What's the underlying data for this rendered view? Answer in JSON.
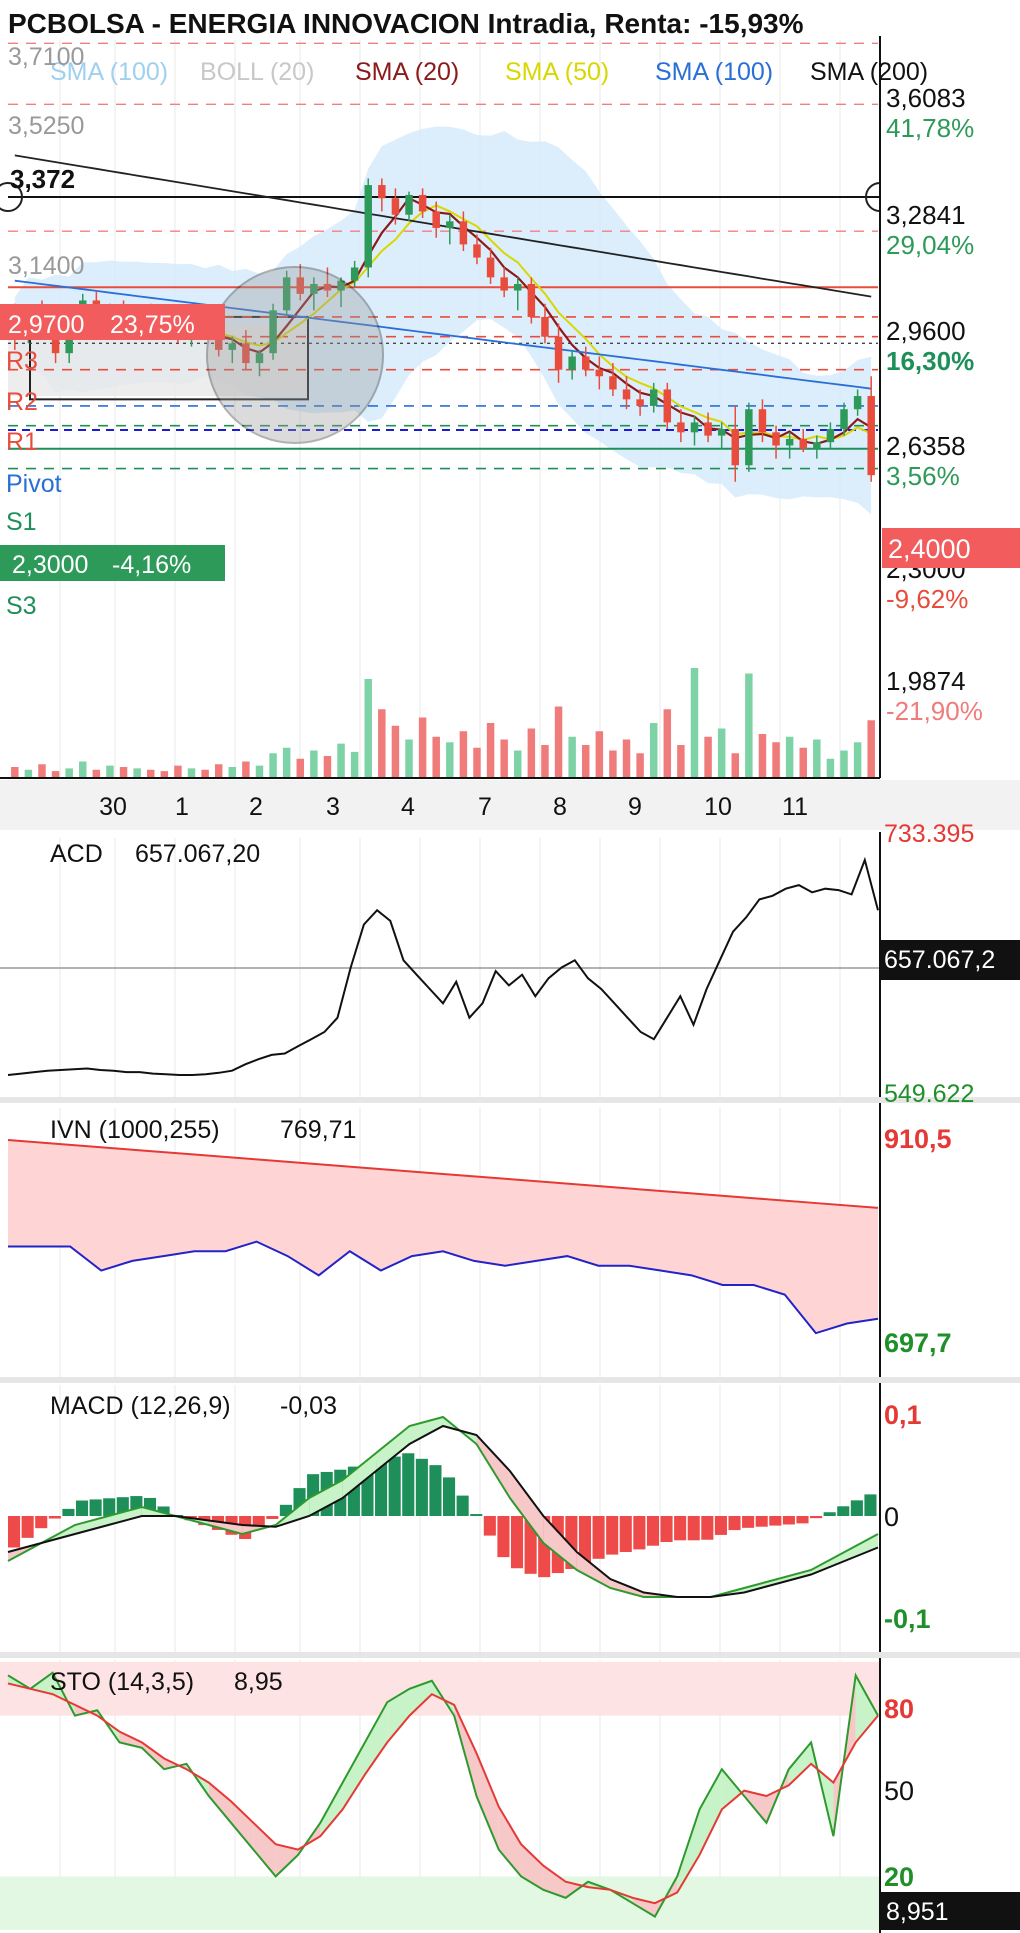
{
  "chart_data": {
    "type": "candlestick",
    "title": "PCBOLSA - ENERGIA INNOVACION Intradia, Renta: -15,93%",
    "legend": [
      {
        "label": "SMA (100)",
        "color": "#9fd0f0"
      },
      {
        "label": "BOLL (20)",
        "color": "#c8c8c8"
      },
      {
        "label": "SMA (20)",
        "color": "#8b1a1a"
      },
      {
        "label": "SMA (50)",
        "color": "#d8d800"
      },
      {
        "label": "SMA (100)",
        "color": "#2a6fd6"
      },
      {
        "label": "SMA (200)",
        "color": "#111111"
      }
    ],
    "price_axis": {
      "ylim": [
        1.9,
        3.72
      ],
      "right_labels": [
        {
          "price": "3,6083",
          "pct": "41,78%",
          "pct_color": "#2e9a5a"
        },
        {
          "price": "3,2841",
          "pct": "29,04%",
          "pct_color": "#2e9a5a"
        },
        {
          "price": "2,9600",
          "pct": "16,30%",
          "pct_color": "#1f8f5a"
        },
        {
          "price": "2,6358",
          "pct": "3,56%",
          "pct_color": "#2e9a5a"
        },
        {
          "price": "2,3000",
          "pct": "-9,62%",
          "pct_color": "#e74c3c"
        },
        {
          "price": "1,9874",
          "pct": "-21,90%",
          "pct_color": "#f07b7b"
        }
      ],
      "current_price": "2,4000",
      "left_levels": [
        "3,7100",
        "3,5250",
        "3,1400"
      ],
      "crosshair_value": "3,372",
      "box_high": {
        "label": "2,9700",
        "pct": "23,75%"
      },
      "box_low": {
        "label": "2,3000",
        "pct": "-4,16%"
      }
    },
    "pivots": [
      {
        "label": "R3",
        "value": 2.88
      },
      {
        "label": "R2",
        "value": 2.82
      },
      {
        "label": "R1",
        "value": 2.72
      },
      {
        "label": "Pivot",
        "value": 2.61
      },
      {
        "label": "S1",
        "value": 2.55
      },
      {
        "label": "S3",
        "value": 2.42
      }
    ],
    "x_ticks": [
      "30",
      "1",
      "2",
      "3",
      "4",
      "7",
      "8",
      "9",
      "10",
      "11"
    ],
    "candles": [
      [
        2.86,
        2.92,
        2.78,
        2.84
      ],
      [
        2.84,
        2.9,
        2.8,
        2.88
      ],
      [
        2.88,
        2.93,
        2.82,
        2.83
      ],
      [
        2.83,
        2.86,
        2.74,
        2.77
      ],
      [
        2.77,
        2.85,
        2.74,
        2.84
      ],
      [
        2.84,
        2.95,
        2.82,
        2.93
      ],
      [
        2.93,
        2.96,
        2.86,
        2.88
      ],
      [
        2.88,
        2.92,
        2.84,
        2.9
      ],
      [
        2.9,
        2.93,
        2.86,
        2.87
      ],
      [
        2.87,
        2.9,
        2.83,
        2.89
      ],
      [
        2.89,
        2.92,
        2.85,
        2.86
      ],
      [
        2.86,
        2.88,
        2.82,
        2.84
      ],
      [
        2.84,
        2.87,
        2.8,
        2.83
      ],
      [
        2.83,
        2.86,
        2.79,
        2.85
      ],
      [
        2.85,
        2.88,
        2.81,
        2.82
      ],
      [
        2.82,
        2.85,
        2.76,
        2.78
      ],
      [
        2.78,
        2.82,
        2.74,
        2.8
      ],
      [
        2.8,
        2.84,
        2.72,
        2.74
      ],
      [
        2.74,
        2.78,
        2.7,
        2.77
      ],
      [
        2.77,
        2.92,
        2.75,
        2.9
      ],
      [
        2.9,
        3.02,
        2.88,
        3.0
      ],
      [
        3.0,
        3.04,
        2.93,
        2.95
      ],
      [
        2.95,
        3.0,
        2.9,
        2.98
      ],
      [
        2.98,
        3.03,
        2.94,
        2.96
      ],
      [
        2.96,
        3.0,
        2.91,
        2.99
      ],
      [
        2.99,
        3.05,
        2.97,
        3.03
      ],
      [
        3.03,
        3.3,
        3.0,
        3.28
      ],
      [
        3.28,
        3.3,
        3.2,
        3.24
      ],
      [
        3.24,
        3.27,
        3.16,
        3.19
      ],
      [
        3.19,
        3.26,
        3.17,
        3.25
      ],
      [
        3.25,
        3.27,
        3.18,
        3.2
      ],
      [
        3.2,
        3.23,
        3.12,
        3.15
      ],
      [
        3.15,
        3.19,
        3.1,
        3.17
      ],
      [
        3.17,
        3.2,
        3.08,
        3.1
      ],
      [
        3.1,
        3.13,
        3.04,
        3.06
      ],
      [
        3.06,
        3.09,
        2.98,
        3.0
      ],
      [
        3.0,
        3.03,
        2.94,
        2.96
      ],
      [
        2.96,
        3.0,
        2.9,
        2.98
      ],
      [
        2.98,
        3.0,
        2.86,
        2.88
      ],
      [
        2.88,
        2.92,
        2.8,
        2.82
      ],
      [
        2.82,
        2.86,
        2.68,
        2.72
      ],
      [
        2.72,
        2.78,
        2.69,
        2.76
      ],
      [
        2.76,
        2.79,
        2.7,
        2.72
      ],
      [
        2.72,
        2.76,
        2.66,
        2.7
      ],
      [
        2.7,
        2.74,
        2.64,
        2.66
      ],
      [
        2.66,
        2.7,
        2.6,
        2.63
      ],
      [
        2.63,
        2.66,
        2.58,
        2.61
      ],
      [
        2.61,
        2.68,
        2.59,
        2.66
      ],
      [
        2.66,
        2.68,
        2.54,
        2.56
      ],
      [
        2.56,
        2.6,
        2.5,
        2.53
      ],
      [
        2.53,
        2.58,
        2.49,
        2.56
      ],
      [
        2.56,
        2.59,
        2.5,
        2.52
      ],
      [
        2.52,
        2.56,
        2.48,
        2.54
      ],
      [
        2.54,
        2.61,
        2.38,
        2.43
      ],
      [
        2.43,
        2.62,
        2.41,
        2.6
      ],
      [
        2.6,
        2.63,
        2.5,
        2.53
      ],
      [
        2.53,
        2.55,
        2.45,
        2.49
      ],
      [
        2.49,
        2.53,
        2.45,
        2.51
      ],
      [
        2.51,
        2.54,
        2.47,
        2.48
      ],
      [
        2.48,
        2.52,
        2.45,
        2.5
      ],
      [
        2.5,
        2.56,
        2.48,
        2.54
      ],
      [
        2.54,
        2.62,
        2.52,
        2.6
      ],
      [
        2.6,
        2.66,
        2.58,
        2.64
      ],
      [
        2.64,
        2.7,
        2.38,
        2.4
      ]
    ],
    "volume": [
      8,
      6,
      10,
      5,
      7,
      12,
      6,
      9,
      8,
      7,
      6,
      5,
      9,
      7,
      6,
      10,
      8,
      12,
      9,
      18,
      22,
      14,
      20,
      16,
      25,
      19,
      72,
      50,
      38,
      28,
      44,
      30,
      26,
      34,
      22,
      40,
      28,
      20,
      36,
      24,
      52,
      30,
      24,
      34,
      20,
      28,
      18,
      40,
      50,
      24,
      80,
      30,
      36,
      18,
      76,
      32,
      26,
      30,
      22,
      28,
      14,
      20,
      26,
      42
    ],
    "volume_colors_up": "#7ed3a6",
    "volume_colors_down": "#f07b7b",
    "indicators": [
      {
        "name": "ACD",
        "value": "657.067,20",
        "axis_top": "733.395",
        "axis_bottom": "549.622",
        "current": "657.067,2"
      },
      {
        "name": "IVN (1000,255)",
        "value": "769,71",
        "axis_top": "910,5",
        "axis_bottom": "697,7"
      },
      {
        "name": "MACD (12,26,9)",
        "value": "-0,03",
        "axis_top": "0,1",
        "axis_mid": "0",
        "axis_bottom": "-0,1"
      },
      {
        "name": "STO (14,3,5)",
        "value": "8,95",
        "axis_top": "80",
        "axis_mid": "50",
        "axis_bottom": "20",
        "current": "8,951"
      }
    ],
    "acd_series": [
      40,
      42,
      44,
      46,
      47,
      48,
      49,
      47,
      46,
      44,
      44,
      42,
      41,
      40,
      40,
      41,
      43,
      46,
      55,
      62,
      68,
      70,
      80,
      90,
      100,
      120,
      190,
      250,
      270,
      255,
      200,
      180,
      160,
      140,
      170,
      120,
      140,
      185,
      165,
      180,
      150,
      175,
      190,
      200,
      175,
      160,
      140,
      120,
      100,
      90,
      120,
      150,
      110,
      160,
      200,
      240,
      260,
      285,
      290,
      300,
      305,
      295,
      300,
      298,
      292,
      340,
      270
    ],
    "ivn_price": [
      880,
      870,
      860,
      850,
      840,
      830,
      820,
      810,
      800,
      790,
      780,
      770,
      760,
      750,
      740
    ],
    "ivn_series": [
      800,
      800,
      800,
      775,
      785,
      790,
      795,
      795,
      805,
      790,
      770,
      795,
      775,
      790,
      795,
      785,
      780,
      785,
      790,
      780,
      780,
      775,
      770,
      760,
      760,
      750,
      710,
      720,
      725
    ],
    "macd_line": [
      -0.05,
      -0.03,
      -0.01,
      0.0,
      0.01,
      0.0,
      -0.01,
      -0.02,
      -0.01,
      0.02,
      0.04,
      0.07,
      0.1,
      0.11,
      0.08,
      0.02,
      -0.03,
      -0.06,
      -0.08,
      -0.09,
      -0.09,
      -0.09,
      -0.08,
      -0.07,
      -0.06,
      -0.04,
      -0.02
    ],
    "macd_signal": [
      -0.04,
      -0.03,
      -0.02,
      -0.01,
      0.0,
      0.0,
      -0.005,
      -0.01,
      -0.012,
      0.0,
      0.02,
      0.05,
      0.08,
      0.1,
      0.09,
      0.05,
      0.0,
      -0.04,
      -0.07,
      -0.085,
      -0.09,
      -0.09,
      -0.085,
      -0.075,
      -0.065,
      -0.05,
      -0.035
    ],
    "sto_k": [
      95,
      90,
      96,
      80,
      82,
      70,
      68,
      60,
      62,
      50,
      40,
      30,
      20,
      28,
      40,
      55,
      70,
      85,
      90,
      93,
      80,
      50,
      30,
      20,
      15,
      12,
      18,
      15,
      10,
      5,
      20,
      45,
      60,
      50,
      40,
      60,
      70,
      35,
      95,
      80
    ],
    "sto_d": [
      92,
      90,
      88,
      84,
      80,
      74,
      70,
      64,
      60,
      55,
      48,
      40,
      32,
      30,
      35,
      45,
      58,
      70,
      80,
      88,
      84,
      66,
      46,
      32,
      24,
      18,
      16,
      15,
      12,
      10,
      14,
      28,
      45,
      52,
      50,
      54,
      62,
      55,
      70,
      80
    ],
    "sto_level": 8.951,
    "grid": true
  }
}
